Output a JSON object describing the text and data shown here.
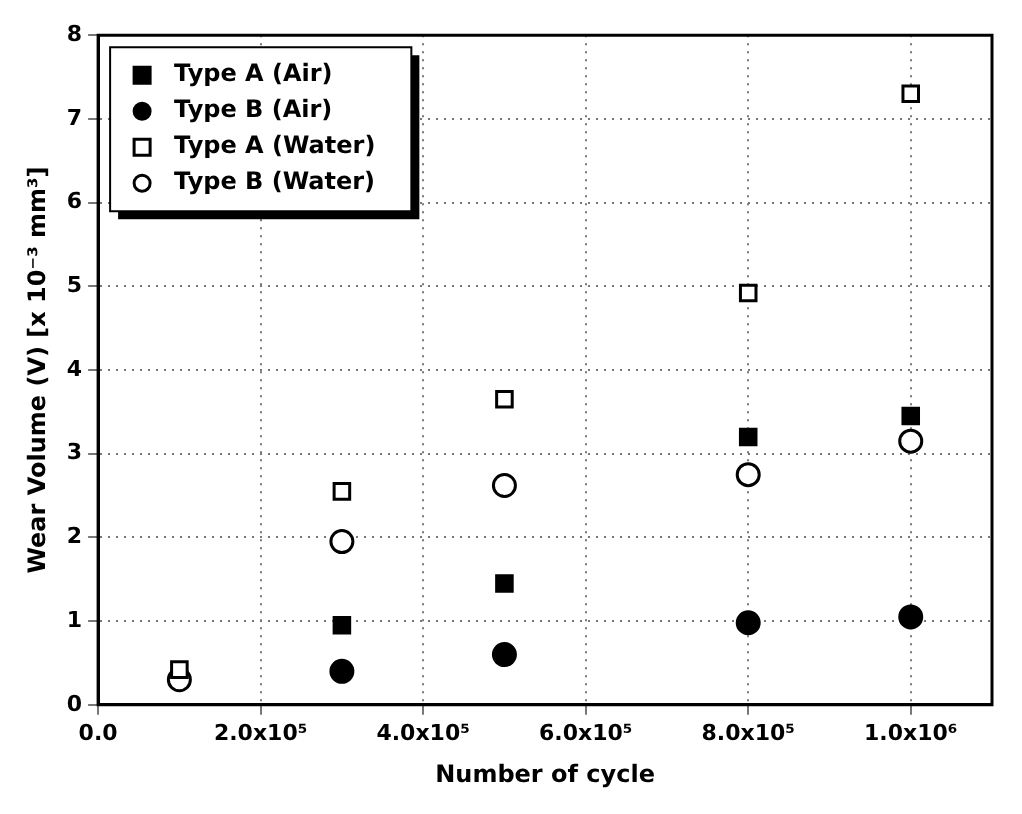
{
  "chart_data": {
    "type": "scatter",
    "xlabel": "Number of cycle",
    "ylabel": "Wear Volume (V) [x 10⁻³ mm³]",
    "xlim": [
      0,
      1100000
    ],
    "xticks": [
      {
        "value": 0,
        "label": "0.0"
      },
      {
        "value": 200000,
        "label": "2.0x10⁵"
      },
      {
        "value": 400000,
        "label": "4.0x10⁵"
      },
      {
        "value": 600000,
        "label": "6.0x10⁵"
      },
      {
        "value": 800000,
        "label": "8.0x10⁵"
      },
      {
        "value": 1000000,
        "label": "1.0x10⁶"
      }
    ],
    "ylim": [
      0,
      8
    ],
    "yticks": [
      0,
      1,
      2,
      3,
      4,
      5,
      6,
      7,
      8
    ],
    "grid": true,
    "line_style": "dotted",
    "legend": "top left",
    "series": [
      {
        "name": "Type A (Air)",
        "color": "#000000",
        "marker": "square",
        "x": [
          300000,
          500000,
          800000,
          1000000
        ],
        "values": [
          0.95,
          1.45,
          3.2,
          3.45
        ]
      },
      {
        "name": "Type B (Air)",
        "color": "#000000",
        "marker": "circle",
        "x": [
          300000,
          500000,
          800000,
          1000000
        ],
        "values": [
          0.4,
          0.6,
          0.98,
          1.05
        ]
      },
      {
        "name": "Type A (Water)",
        "color": "#ffffff",
        "marker": "square",
        "x": [
          100000,
          300000,
          500000,
          800000,
          1000000
        ],
        "values": [
          0.42,
          2.55,
          3.65,
          4.92,
          7.3
        ]
      },
      {
        "name": "Type B (Water)",
        "color": "#ffffff",
        "marker": "circle",
        "x": [
          100000,
          300000,
          500000,
          800000,
          1000000
        ],
        "values": [
          0.3,
          1.95,
          2.62,
          2.75,
          3.15
        ]
      }
    ]
  }
}
